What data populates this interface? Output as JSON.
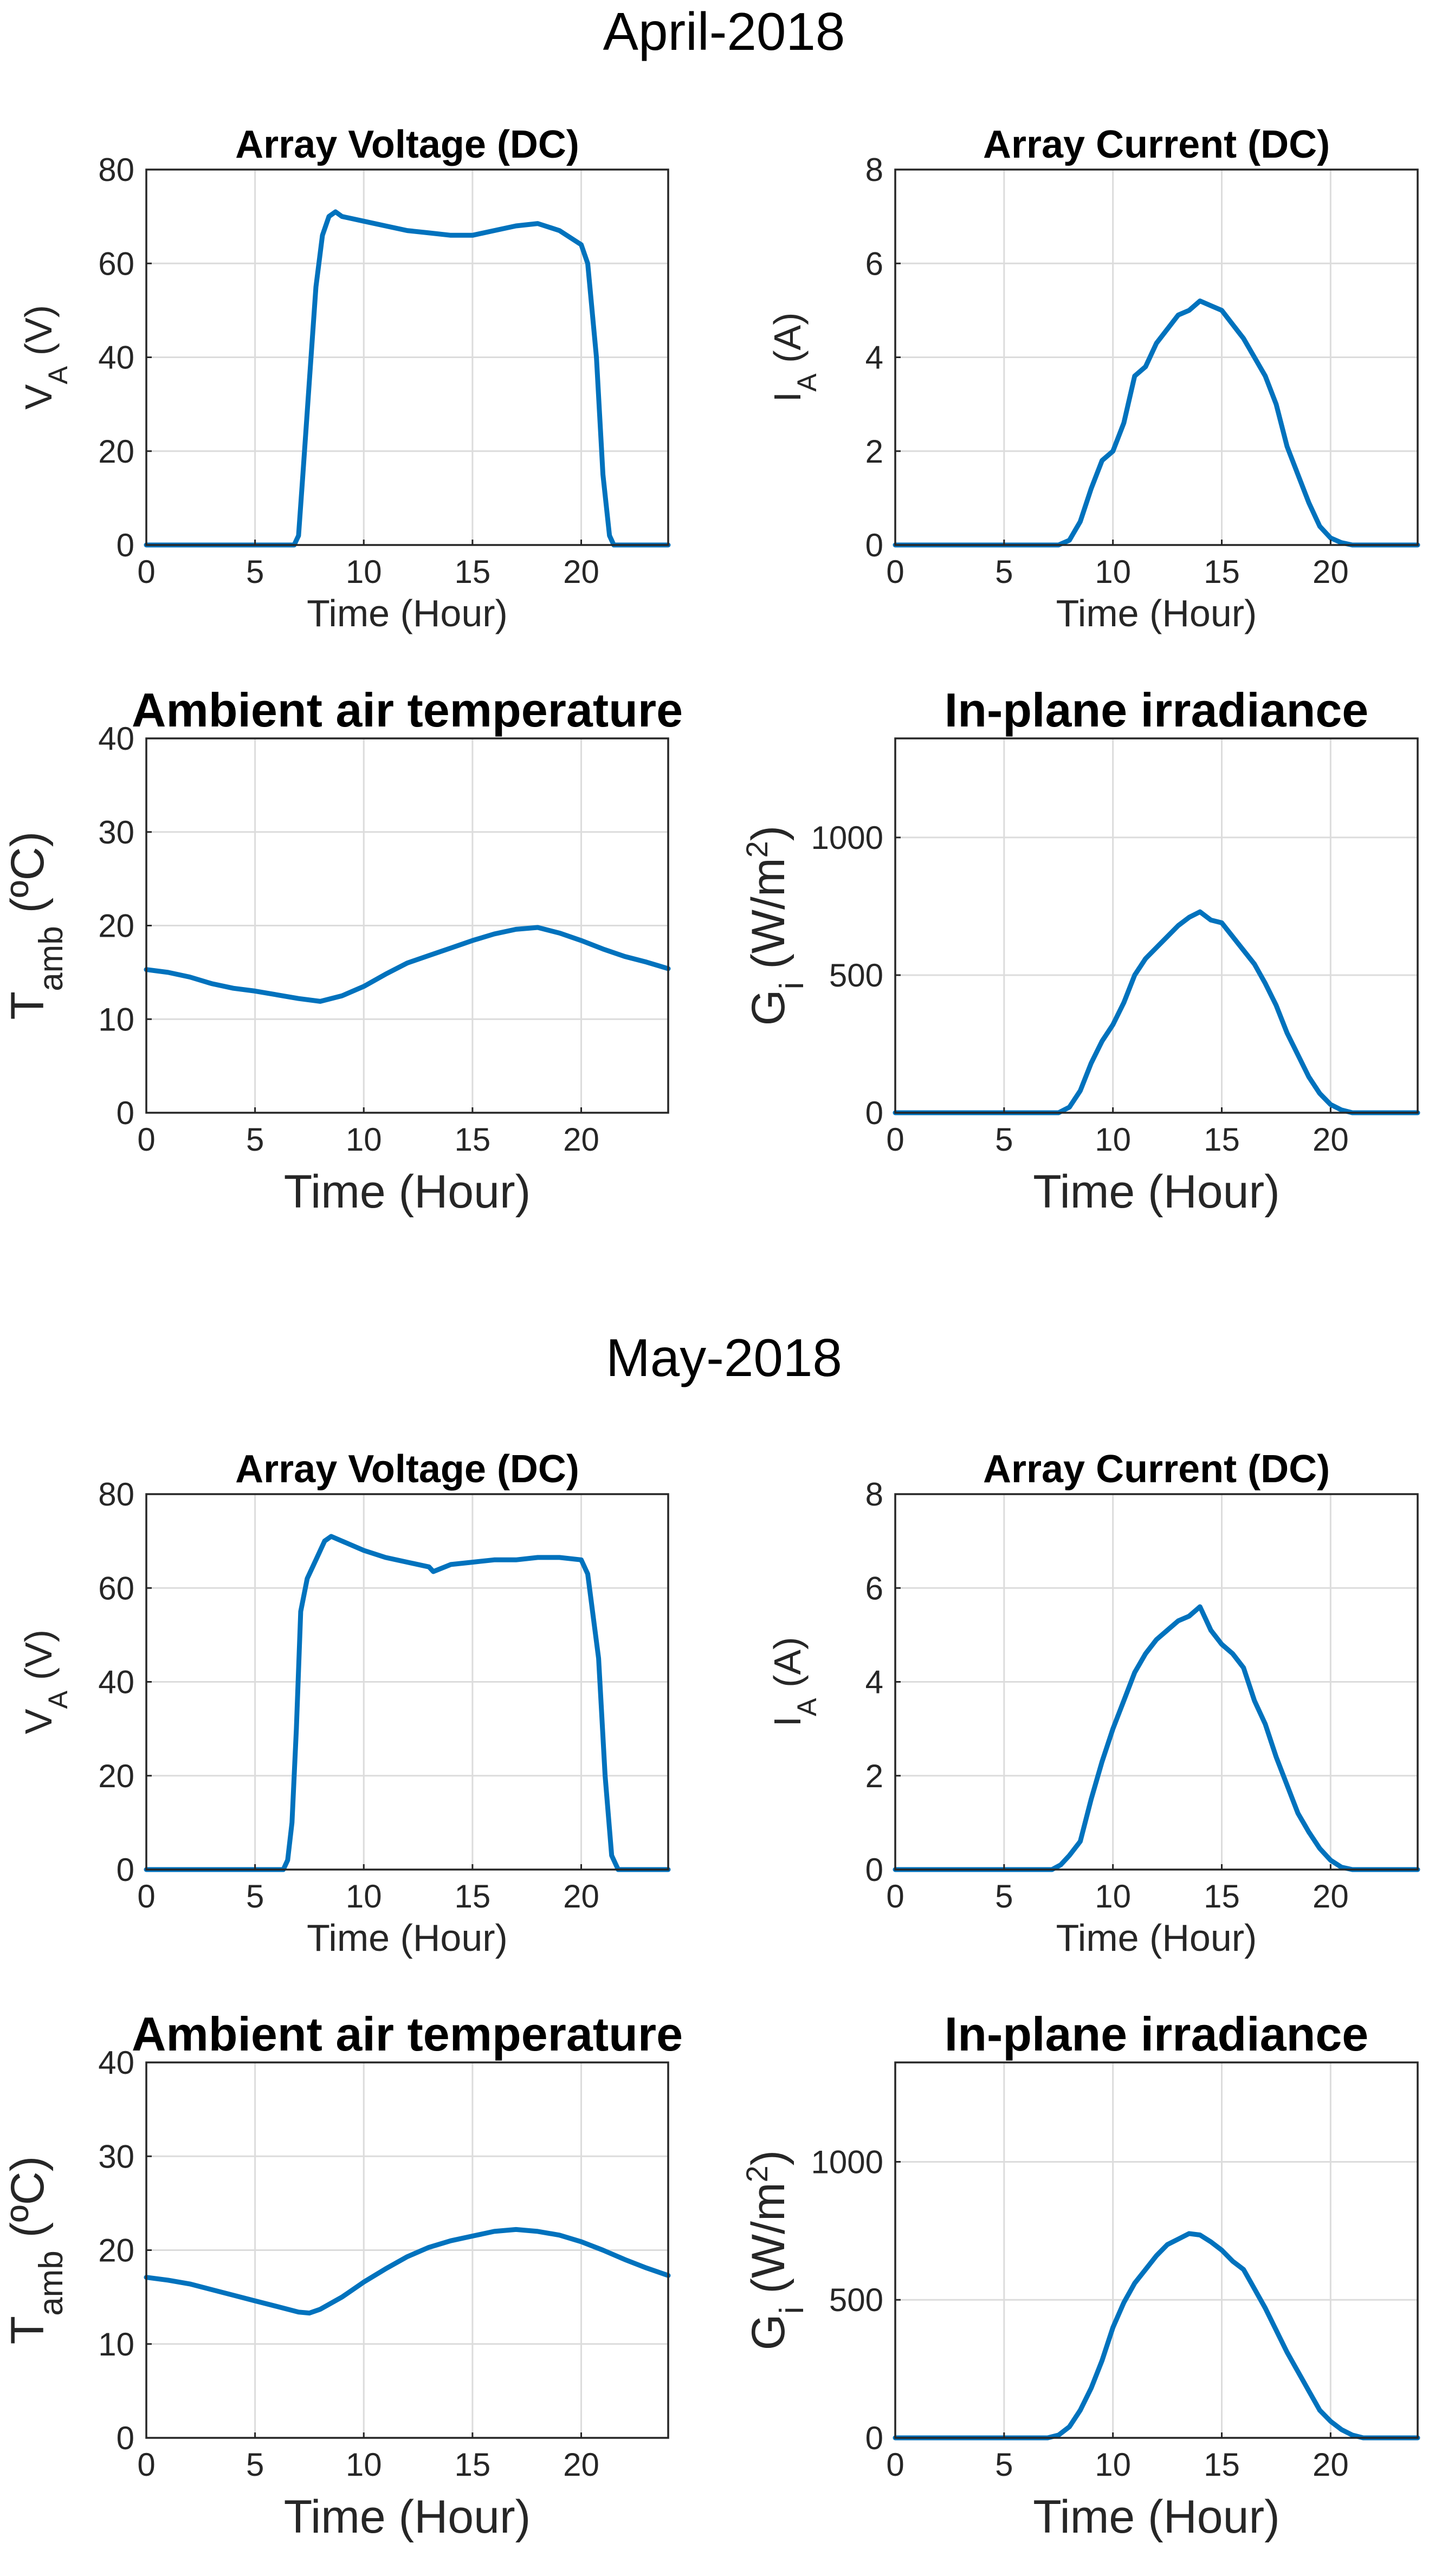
{
  "figures": [
    {
      "title": "April-2018"
    },
    {
      "title": "May-2018"
    }
  ],
  "chart_data": [
    {
      "group": "April-2018",
      "type": "line",
      "title": "Array Voltage (DC)",
      "xlabel": "Time (Hour)",
      "ylabel": {
        "main": "V",
        "sub": "A",
        "rest": " (V)"
      },
      "xlim": [
        0,
        24
      ],
      "ylim": [
        0,
        80
      ],
      "grid": true,
      "xticks": [
        0,
        5,
        10,
        15,
        20
      ],
      "yticks": [
        0,
        20,
        40,
        60,
        80
      ],
      "series": [
        {
          "name": "V_A",
          "color": "#0072bd",
          "x": [
            0,
            6.8,
            7.0,
            7.2,
            7.5,
            7.8,
            8.1,
            8.4,
            8.7,
            9.0,
            10,
            11,
            12,
            13,
            14,
            15,
            16,
            17,
            18,
            19,
            20,
            20.3,
            20.7,
            21.0,
            21.3,
            21.5,
            22,
            24
          ],
          "y": [
            0,
            0,
            2,
            15,
            35,
            55,
            66,
            70,
            71,
            70,
            69,
            68,
            67,
            66.5,
            66,
            66,
            67,
            68,
            68.5,
            67,
            64,
            60,
            40,
            15,
            2,
            0,
            0,
            0
          ]
        }
      ]
    },
    {
      "group": "April-2018",
      "type": "line",
      "title": "Array Current (DC)",
      "xlabel": "Time (Hour)",
      "ylabel": {
        "main": "I",
        "sub": "A",
        "rest": " (A)"
      },
      "xlim": [
        0,
        24
      ],
      "ylim": [
        0,
        8
      ],
      "grid": true,
      "xticks": [
        0,
        5,
        10,
        15,
        20
      ],
      "yticks": [
        0,
        2,
        4,
        6,
        8
      ],
      "series": [
        {
          "name": "I_A",
          "color": "#0072bd",
          "x": [
            0,
            7.5,
            8.0,
            8.5,
            9.0,
            9.5,
            10.0,
            10.5,
            11.0,
            11.5,
            12.0,
            12.5,
            13.0,
            13.5,
            14.0,
            14.5,
            15.0,
            15.5,
            16.0,
            16.5,
            17.0,
            17.5,
            18.0,
            18.5,
            19.0,
            19.5,
            20.0,
            20.5,
            21.0,
            24
          ],
          "y": [
            0,
            0,
            0.1,
            0.5,
            1.2,
            1.8,
            2.0,
            2.6,
            3.6,
            3.8,
            4.3,
            4.6,
            4.9,
            5.0,
            5.2,
            5.1,
            5.0,
            4.7,
            4.4,
            4.0,
            3.6,
            3.0,
            2.1,
            1.5,
            0.9,
            0.4,
            0.15,
            0.05,
            0,
            0
          ]
        }
      ]
    },
    {
      "group": "April-2018",
      "type": "line",
      "title": "Ambient air temperature",
      "xlabel": "Time (Hour)",
      "ylabel": {
        "main": "T",
        "sub": "amb",
        "rest": " (ºC)"
      },
      "xlim": [
        0,
        24
      ],
      "ylim": [
        0,
        40
      ],
      "grid": true,
      "xticks": [
        0,
        5,
        10,
        15,
        20
      ],
      "yticks": [
        0,
        10,
        20,
        30,
        40
      ],
      "series": [
        {
          "name": "T_amb",
          "color": "#0072bd",
          "x": [
            0,
            1,
            2,
            3,
            4,
            5,
            6,
            7,
            8,
            9,
            10,
            11,
            12,
            13,
            14,
            15,
            16,
            17,
            18,
            19,
            20,
            21,
            22,
            23,
            24
          ],
          "y": [
            15.3,
            15.0,
            14.5,
            13.8,
            13.3,
            13.0,
            12.6,
            12.2,
            11.9,
            12.5,
            13.5,
            14.8,
            16.0,
            16.8,
            17.6,
            18.4,
            19.1,
            19.6,
            19.8,
            19.2,
            18.4,
            17.5,
            16.7,
            16.1,
            15.4
          ]
        }
      ]
    },
    {
      "group": "April-2018",
      "type": "line",
      "title": "In-plane irradiance",
      "xlabel": "Time (Hour)",
      "ylabel": {
        "main": "G",
        "sub": "i",
        "rest": " (W/m",
        "sup": "2",
        "end": ")"
      },
      "xlim": [
        0,
        24
      ],
      "ylim": [
        0,
        1360
      ],
      "grid": true,
      "xticks": [
        0,
        5,
        10,
        15,
        20
      ],
      "yticks": [
        0,
        500,
        1000
      ],
      "series": [
        {
          "name": "G_i",
          "color": "#0072bd",
          "x": [
            0,
            7.5,
            8.0,
            8.5,
            9.0,
            9.5,
            10.0,
            10.5,
            11.0,
            11.5,
            12.0,
            12.5,
            13.0,
            13.5,
            14.0,
            14.5,
            15.0,
            15.5,
            16.0,
            16.5,
            17.0,
            17.5,
            18.0,
            18.5,
            19.0,
            19.5,
            20.0,
            20.5,
            21.0,
            24
          ],
          "y": [
            0,
            0,
            20,
            80,
            180,
            260,
            320,
            400,
            500,
            560,
            600,
            640,
            680,
            710,
            730,
            700,
            690,
            640,
            590,
            540,
            470,
            390,
            290,
            210,
            130,
            70,
            30,
            10,
            0,
            0
          ]
        }
      ]
    },
    {
      "group": "May-2018",
      "type": "line",
      "title": "Array Voltage (DC)",
      "xlabel": "Time (Hour)",
      "ylabel": {
        "main": "V",
        "sub": "A",
        "rest": " (V)"
      },
      "xlim": [
        0,
        24
      ],
      "ylim": [
        0,
        80
      ],
      "grid": true,
      "xticks": [
        0,
        5,
        10,
        15,
        20
      ],
      "yticks": [
        0,
        20,
        40,
        60,
        80
      ],
      "series": [
        {
          "name": "V_A",
          "color": "#0072bd",
          "x": [
            0,
            6.3,
            6.5,
            6.7,
            6.9,
            7.1,
            7.4,
            7.8,
            8.2,
            8.5,
            9.0,
            10,
            11,
            12,
            13,
            13.2,
            14,
            15,
            16,
            17,
            18,
            19,
            20,
            20.3,
            20.8,
            21.1,
            21.4,
            21.7,
            22,
            24
          ],
          "y": [
            0,
            0,
            2,
            10,
            30,
            55,
            62,
            66,
            70,
            71,
            70,
            68,
            66.5,
            65.5,
            64.5,
            63.5,
            65,
            65.5,
            66,
            66,
            66.5,
            66.5,
            66,
            63,
            45,
            20,
            3,
            0,
            0,
            0
          ]
        }
      ]
    },
    {
      "group": "May-2018",
      "type": "line",
      "title": "Array Current (DC)",
      "xlabel": "Time (Hour)",
      "ylabel": {
        "main": "I",
        "sub": "A",
        "rest": " (A)"
      },
      "xlim": [
        0,
        24
      ],
      "ylim": [
        0,
        8
      ],
      "grid": true,
      "xticks": [
        0,
        5,
        10,
        15,
        20
      ],
      "yticks": [
        0,
        2,
        4,
        6,
        8
      ],
      "series": [
        {
          "name": "I_A",
          "color": "#0072bd",
          "x": [
            0,
            7.2,
            7.6,
            8.0,
            8.5,
            9.0,
            9.5,
            10.0,
            10.5,
            11.0,
            11.5,
            12.0,
            12.5,
            13.0,
            13.5,
            14.0,
            14.5,
            15.0,
            15.5,
            16.0,
            16.5,
            17.0,
            17.5,
            18.0,
            18.5,
            19.0,
            19.5,
            20.0,
            20.5,
            21.0,
            24
          ],
          "y": [
            0,
            0,
            0.1,
            0.3,
            0.6,
            1.5,
            2.3,
            3.0,
            3.6,
            4.2,
            4.6,
            4.9,
            5.1,
            5.3,
            5.4,
            5.6,
            5.1,
            4.8,
            4.6,
            4.3,
            3.6,
            3.1,
            2.4,
            1.8,
            1.2,
            0.8,
            0.45,
            0.2,
            0.05,
            0,
            0
          ]
        }
      ]
    },
    {
      "group": "May-2018",
      "type": "line",
      "title": "Ambient air temperature",
      "xlabel": "Time (Hour)",
      "ylabel": {
        "main": "T",
        "sub": "amb",
        "rest": " (ºC)"
      },
      "xlim": [
        0,
        24
      ],
      "ylim": [
        0,
        40
      ],
      "grid": true,
      "xticks": [
        0,
        5,
        10,
        15,
        20
      ],
      "yticks": [
        0,
        10,
        20,
        30,
        40
      ],
      "series": [
        {
          "name": "T_amb",
          "color": "#0072bd",
          "x": [
            0,
            1,
            2,
            3,
            4,
            5,
            6,
            7,
            7.5,
            8,
            9,
            10,
            11,
            12,
            13,
            14,
            15,
            16,
            17,
            18,
            19,
            20,
            21,
            22,
            23,
            24
          ],
          "y": [
            17.1,
            16.8,
            16.4,
            15.8,
            15.2,
            14.6,
            14.0,
            13.4,
            13.3,
            13.7,
            15.0,
            16.6,
            18.0,
            19.3,
            20.3,
            21.0,
            21.5,
            22.0,
            22.2,
            22.0,
            21.6,
            20.9,
            20.0,
            19.0,
            18.1,
            17.3
          ]
        }
      ]
    },
    {
      "group": "May-2018",
      "type": "line",
      "title": "In-plane irradiance",
      "xlabel": "Time (Hour)",
      "ylabel": {
        "main": "G",
        "sub": "i",
        "rest": " (W/m",
        "sup": "2",
        "end": ")"
      },
      "xlim": [
        0,
        24
      ],
      "ylim": [
        0,
        1360
      ],
      "grid": true,
      "xticks": [
        0,
        5,
        10,
        15,
        20
      ],
      "yticks": [
        0,
        500,
        1000
      ],
      "series": [
        {
          "name": "G_i",
          "color": "#0072bd",
          "x": [
            0,
            7.0,
            7.5,
            8.0,
            8.5,
            9.0,
            9.5,
            10.0,
            10.5,
            11.0,
            11.5,
            12.0,
            12.5,
            13.0,
            13.5,
            14.0,
            14.5,
            15.0,
            15.5,
            16.0,
            16.5,
            17.0,
            17.5,
            18.0,
            18.5,
            19.0,
            19.5,
            20.0,
            20.5,
            21.0,
            21.5,
            24
          ],
          "y": [
            0,
            0,
            10,
            40,
            100,
            180,
            280,
            400,
            490,
            560,
            610,
            660,
            700,
            720,
            740,
            735,
            710,
            680,
            640,
            610,
            540,
            470,
            390,
            310,
            240,
            170,
            100,
            60,
            30,
            10,
            0,
            0
          ]
        }
      ]
    }
  ]
}
